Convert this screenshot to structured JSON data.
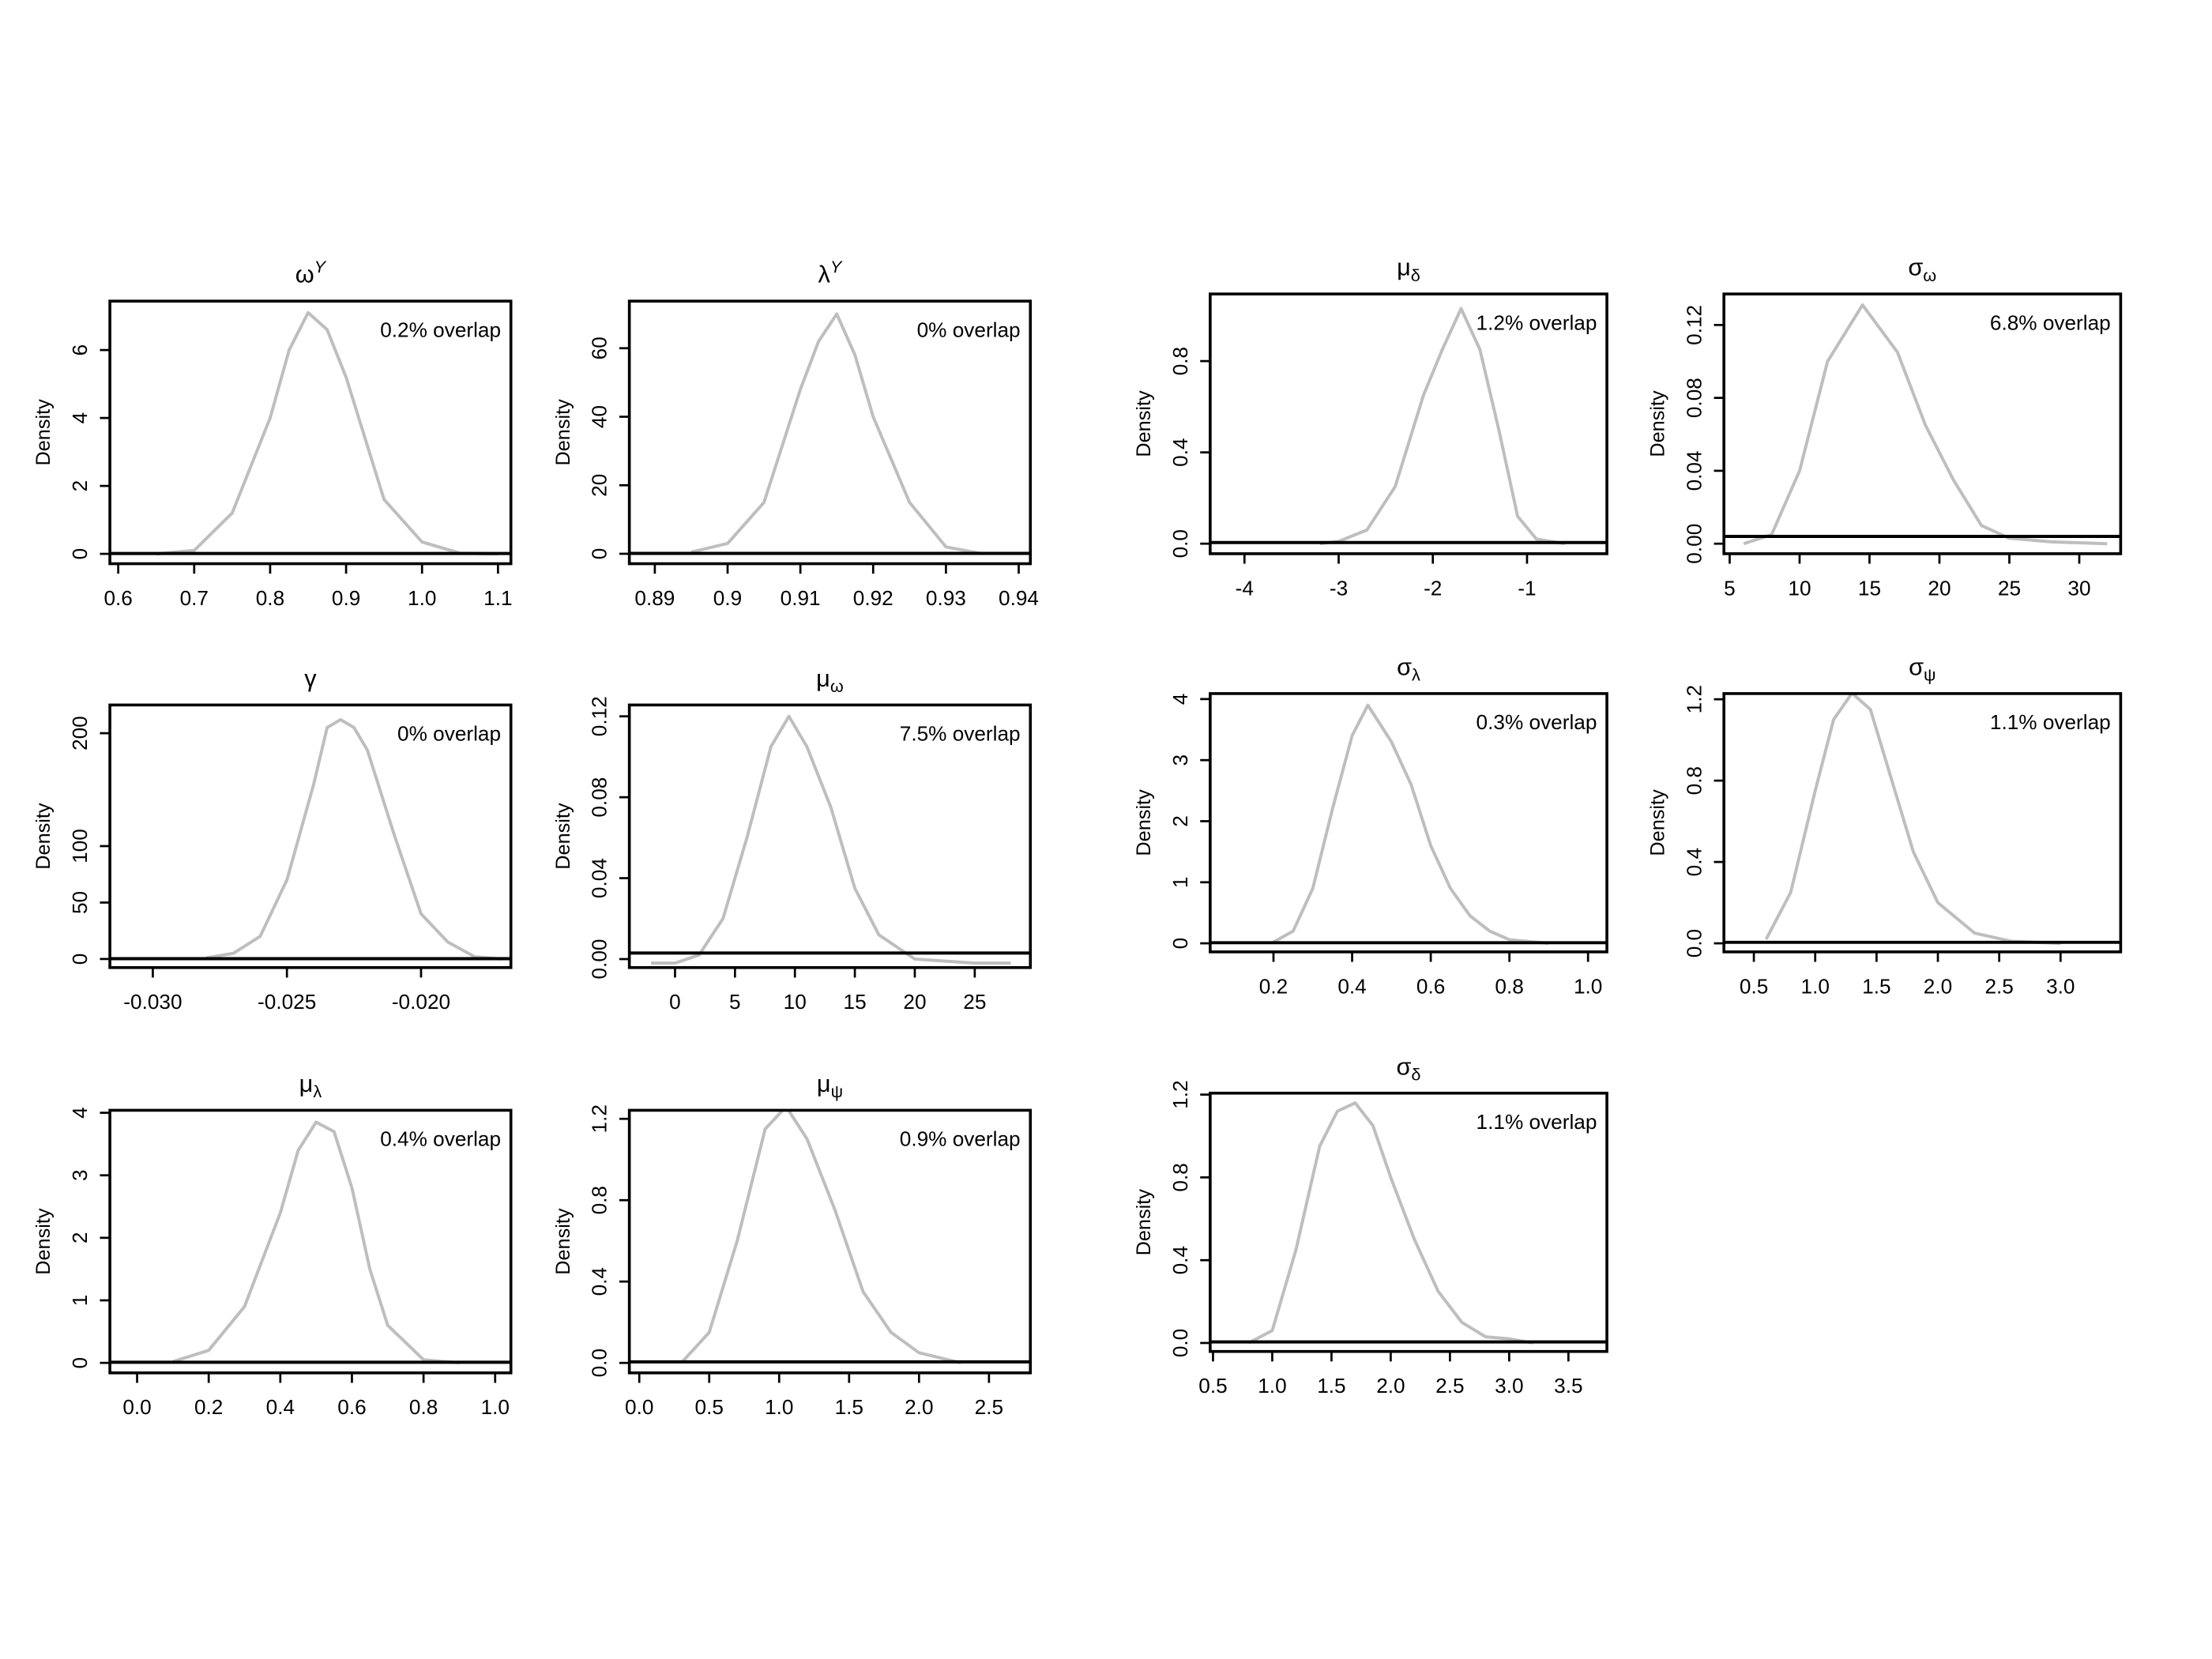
{
  "chart_data": [
    {
      "type": "line",
      "title": "ω",
      "title_superscript": "Y",
      "ylabel": "Density",
      "annotation": "0.2% overlap",
      "xlim": [
        0.589,
        1.117
      ],
      "ylim": [
        -0.29,
        7.44
      ],
      "xticks": [
        0.6,
        0.7,
        0.8,
        0.9,
        {
          "value": 1.0,
          "label": "1.0"
        },
        1.1
      ],
      "yticks": [
        0,
        2,
        4,
        6
      ],
      "series": [
        {
          "color": "#bebebe",
          "x": [
            0.65,
            0.7,
            0.75,
            0.8,
            0.825,
            0.85,
            0.875,
            0.9,
            0.95,
            1.0,
            1.05,
            1.1
          ],
          "values": [
            0,
            0.1,
            1.2,
            4.0,
            6.0,
            7.1,
            6.6,
            5.2,
            1.6,
            0.35,
            0.02,
            0
          ]
        },
        {
          "color": "#000000",
          "x": [
            0.589,
            1.117
          ],
          "values": [
            0.01,
            0.01
          ]
        }
      ]
    },
    {
      "type": "line",
      "title": "λ",
      "title_superscript": "Y",
      "ylabel": "Density",
      "annotation": "0% overlap",
      "xlim": [
        0.8865,
        0.9416
      ],
      "ylim": [
        -2.9,
        73.75
      ],
      "xticks": [
        0.89,
        0.9,
        0.91,
        0.92,
        0.93,
        0.94
      ],
      "yticks": [
        0,
        20,
        40,
        60
      ],
      "series": [
        {
          "color": "#bebebe",
          "x": [
            0.895,
            0.9,
            0.905,
            0.91,
            0.9125,
            0.915,
            0.9175,
            0.92,
            0.925,
            0.93,
            0.935
          ],
          "values": [
            0.5,
            3,
            15,
            48,
            62,
            70,
            58,
            40,
            15,
            2,
            0
          ]
        },
        {
          "color": "#000000",
          "x": [
            0.8865,
            0.9416
          ],
          "values": [
            0.1,
            0.1
          ]
        }
      ]
    },
    {
      "type": "line",
      "title": "μ",
      "title_subscript": "δ",
      "ylabel": "Density",
      "annotation": "1.2% overlap",
      "xlim": [
        -4.364,
        -0.152
      ],
      "ylim": [
        -0.044,
        1.094
      ],
      "xticks": [
        -4,
        -3,
        -2,
        -1
      ],
      "yticks": [
        {
          "value": 0,
          "label": "0.0"
        },
        0.4,
        0.8
      ],
      "series": [
        {
          "color": "#bebebe",
          "x": [
            -3.2,
            -3,
            -2.7,
            -2.4,
            -2.1,
            -1.9,
            -1.7,
            -1.5,
            -1.3,
            -1.1,
            -0.9,
            -0.6
          ],
          "values": [
            0,
            0.01,
            0.06,
            0.25,
            0.65,
            0.85,
            1.03,
            0.85,
            0.5,
            0.12,
            0.02,
            0
          ]
        },
        {
          "color": "#000000",
          "x": [
            -4.364,
            -0.152
          ],
          "values": [
            0.005,
            0.005
          ]
        }
      ]
    },
    {
      "type": "line",
      "title": "σ",
      "title_subscript": "ω",
      "ylabel": "Density",
      "annotation": "6.8% overlap",
      "xlim": [
        4.59,
        32.96
      ],
      "ylim": [
        -0.0055,
        0.137
      ],
      "xticks": [
        5,
        10,
        15,
        20,
        25,
        30
      ],
      "yticks": [
        {
          "value": 0,
          "label": "0.00"
        },
        0.04,
        0.08,
        0.12
      ],
      "series": [
        {
          "color": "#bebebe",
          "x": [
            6,
            8,
            10,
            12,
            14.5,
            17,
            19,
            21,
            23,
            25,
            28,
            32
          ],
          "values": [
            0,
            0.005,
            0.04,
            0.1,
            0.131,
            0.105,
            0.065,
            0.035,
            0.01,
            0.003,
            0.001,
            0
          ]
        },
        {
          "color": "#000000",
          "x": [
            4.59,
            32.96
          ],
          "values": [
            0.004,
            0.004
          ]
        }
      ]
    },
    {
      "type": "line",
      "title": "γ",
      "ylabel": "Density",
      "annotation": "0% overlap",
      "xlim": [
        -0.0316,
        -0.01665
      ],
      "ylim": [
        -7.6,
        225
      ],
      "xticks": [
        {
          "value": -0.03,
          "label": "-0.030"
        },
        -0.025,
        {
          "value": -0.02,
          "label": "-0.020"
        }
      ],
      "yticks": [
        0,
        50,
        100,
        200
      ],
      "series": [
        {
          "color": "#bebebe",
          "x": [
            -0.028,
            -0.027,
            -0.026,
            -0.025,
            -0.024,
            -0.0235,
            -0.023,
            -0.0225,
            -0.022,
            -0.021,
            -0.02,
            -0.019,
            -0.018,
            -0.017
          ],
          "values": [
            1,
            5,
            20,
            70,
            155,
            205,
            212,
            205,
            185,
            110,
            40,
            15,
            2,
            0
          ]
        },
        {
          "color": "#000000",
          "x": [
            -0.0316,
            -0.01665
          ],
          "values": [
            0.3,
            0.3
          ]
        }
      ]
    },
    {
      "type": "line",
      "title": "μ",
      "title_subscript": "ω",
      "ylabel": "Density",
      "annotation": "7.5% overlap",
      "xlim": [
        -3.81,
        29.64
      ],
      "ylim": [
        -0.0042,
        0.1256
      ],
      "xticks": [
        0,
        5,
        10,
        15,
        20,
        25
      ],
      "yticks": [
        {
          "value": 0,
          "label": "0.00"
        },
        0.04,
        0.08,
        0.12
      ],
      "series": [
        {
          "color": "#bebebe",
          "x": [
            -2,
            0,
            2,
            4,
            6,
            8,
            9.5,
            11,
            13,
            15,
            17,
            20,
            25,
            28
          ],
          "values": [
            -0.002,
            -0.002,
            0.002,
            0.02,
            0.06,
            0.105,
            0.12,
            0.105,
            0.075,
            0.035,
            0.012,
            0,
            -0.002,
            -0.002
          ]
        },
        {
          "color": "#000000",
          "x": [
            -3.81,
            29.64
          ],
          "values": [
            0.003,
            0.003
          ]
        }
      ]
    },
    {
      "type": "line",
      "title": "σ",
      "title_subscript": "λ",
      "ylabel": "Density",
      "annotation": "0.3% overlap",
      "xlim": [
        0.039,
        1.048
      ],
      "ylim": [
        -0.14,
        4.09
      ],
      "xticks": [
        0.2,
        0.4,
        0.6,
        0.8,
        {
          "value": 1.0,
          "label": "1.0"
        }
      ],
      "yticks": [
        0,
        1,
        2,
        3,
        4
      ],
      "series": [
        {
          "color": "#bebebe",
          "x": [
            0.2,
            0.25,
            0.3,
            0.35,
            0.4,
            0.44,
            0.5,
            0.55,
            0.6,
            0.65,
            0.7,
            0.75,
            0.8,
            0.9
          ],
          "values": [
            0.02,
            0.2,
            0.9,
            2.2,
            3.4,
            3.9,
            3.3,
            2.6,
            1.6,
            0.9,
            0.45,
            0.2,
            0.06,
            0
          ]
        },
        {
          "color": "#000000",
          "x": [
            0.039,
            1.048
          ],
          "values": [
            0.01,
            0.01
          ]
        }
      ]
    },
    {
      "type": "line",
      "title": "σ",
      "title_subscript": "ψ",
      "ylabel": "Density",
      "annotation": "1.1% overlap",
      "xlim": [
        0.256,
        3.49
      ],
      "ylim": [
        -0.042,
        1.228
      ],
      "xticks": [
        0.5,
        {
          "value": 1.0,
          "label": "1.0"
        },
        1.5,
        {
          "value": 2.0,
          "label": "2.0"
        },
        2.5,
        {
          "value": 3.0,
          "label": "3.0"
        }
      ],
      "yticks": [
        {
          "value": 0,
          "label": "0.0"
        },
        0.4,
        0.8,
        1.2
      ],
      "series": [
        {
          "color": "#bebebe",
          "x": [
            0.6,
            0.8,
            1.0,
            1.15,
            1.3,
            1.45,
            1.6,
            1.8,
            2.0,
            2.1,
            2.3,
            2.6,
            3.0
          ],
          "values": [
            0.02,
            0.25,
            0.75,
            1.1,
            1.23,
            1.15,
            0.85,
            0.45,
            0.2,
            0.15,
            0.05,
            0.01,
            0
          ]
        },
        {
          "color": "#000000",
          "x": [
            0.256,
            3.49
          ],
          "values": [
            0.005,
            0.005
          ]
        }
      ]
    },
    {
      "type": "line",
      "title": "μ",
      "title_subscript": "λ",
      "ylabel": "Density",
      "annotation": "0.4% overlap",
      "xlim": [
        -0.076,
        1.044
      ],
      "ylim": [
        -0.16,
        4.04
      ],
      "xticks": [
        {
          "value": 0,
          "label": "0.0"
        },
        0.2,
        0.4,
        0.6,
        0.8,
        {
          "value": 1.0,
          "label": "1.0"
        }
      ],
      "yticks": [
        0,
        1,
        2,
        3,
        4
      ],
      "series": [
        {
          "color": "#bebebe",
          "x": [
            0.1,
            0.2,
            0.3,
            0.4,
            0.45,
            0.5,
            0.55,
            0.6,
            0.65,
            0.7,
            0.8,
            0.9
          ],
          "values": [
            0.02,
            0.2,
            0.9,
            2.4,
            3.4,
            3.85,
            3.7,
            2.8,
            1.5,
            0.6,
            0.05,
            0
          ]
        },
        {
          "color": "#000000",
          "x": [
            -0.076,
            1.044
          ],
          "values": [
            0.01,
            0.01
          ]
        }
      ]
    },
    {
      "type": "line",
      "title": "μ",
      "title_subscript": "ψ",
      "ylabel": "Density",
      "annotation": "0.9% overlap",
      "xlim": [
        -0.071,
        2.796
      ],
      "ylim": [
        -0.049,
        1.242
      ],
      "xticks": [
        {
          "value": 0,
          "label": "0.0"
        },
        0.5,
        {
          "value": 1.0,
          "label": "1.0"
        },
        1.5,
        {
          "value": 2.0,
          "label": "2.0"
        },
        2.5
      ],
      "yticks": [
        {
          "value": 0,
          "label": "0.0"
        },
        0.4,
        0.8,
        1.2
      ],
      "series": [
        {
          "color": "#bebebe",
          "x": [
            0.3,
            0.5,
            0.7,
            0.9,
            1.05,
            1.2,
            1.4,
            1.6,
            1.8,
            2.0,
            2.3
          ],
          "values": [
            0,
            0.15,
            0.6,
            1.15,
            1.26,
            1.1,
            0.75,
            0.35,
            0.15,
            0.05,
            0
          ]
        },
        {
          "color": "#000000",
          "x": [
            -0.071,
            2.796
          ],
          "values": [
            0.005,
            0.005
          ]
        }
      ]
    },
    {
      "type": "line",
      "title": "σ",
      "title_subscript": "δ",
      "ylabel": "Density",
      "annotation": "1.1% overlap",
      "xlim": [
        0.476,
        3.825
      ],
      "ylim": [
        -0.041,
        1.207
      ],
      "xticks": [
        0.5,
        {
          "value": 1.0,
          "label": "1.0"
        },
        1.5,
        {
          "value": 2.0,
          "label": "2.0"
        },
        2.5,
        {
          "value": 3.0,
          "label": "3.0"
        },
        3.5
      ],
      "yticks": [
        {
          "value": 0,
          "label": "0.0"
        },
        0.4,
        0.8,
        1.2
      ],
      "series": [
        {
          "color": "#bebebe",
          "x": [
            0.8,
            1.0,
            1.2,
            1.4,
            1.55,
            1.7,
            1.85,
            2.0,
            2.2,
            2.4,
            2.6,
            2.8,
            3.0,
            3.2
          ],
          "values": [
            0,
            0.06,
            0.45,
            0.95,
            1.12,
            1.16,
            1.05,
            0.8,
            0.5,
            0.25,
            0.1,
            0.03,
            0.02,
            0
          ]
        },
        {
          "color": "#000000",
          "x": [
            0.476,
            3.825
          ],
          "values": [
            0.005,
            0.005
          ]
        }
      ]
    }
  ]
}
